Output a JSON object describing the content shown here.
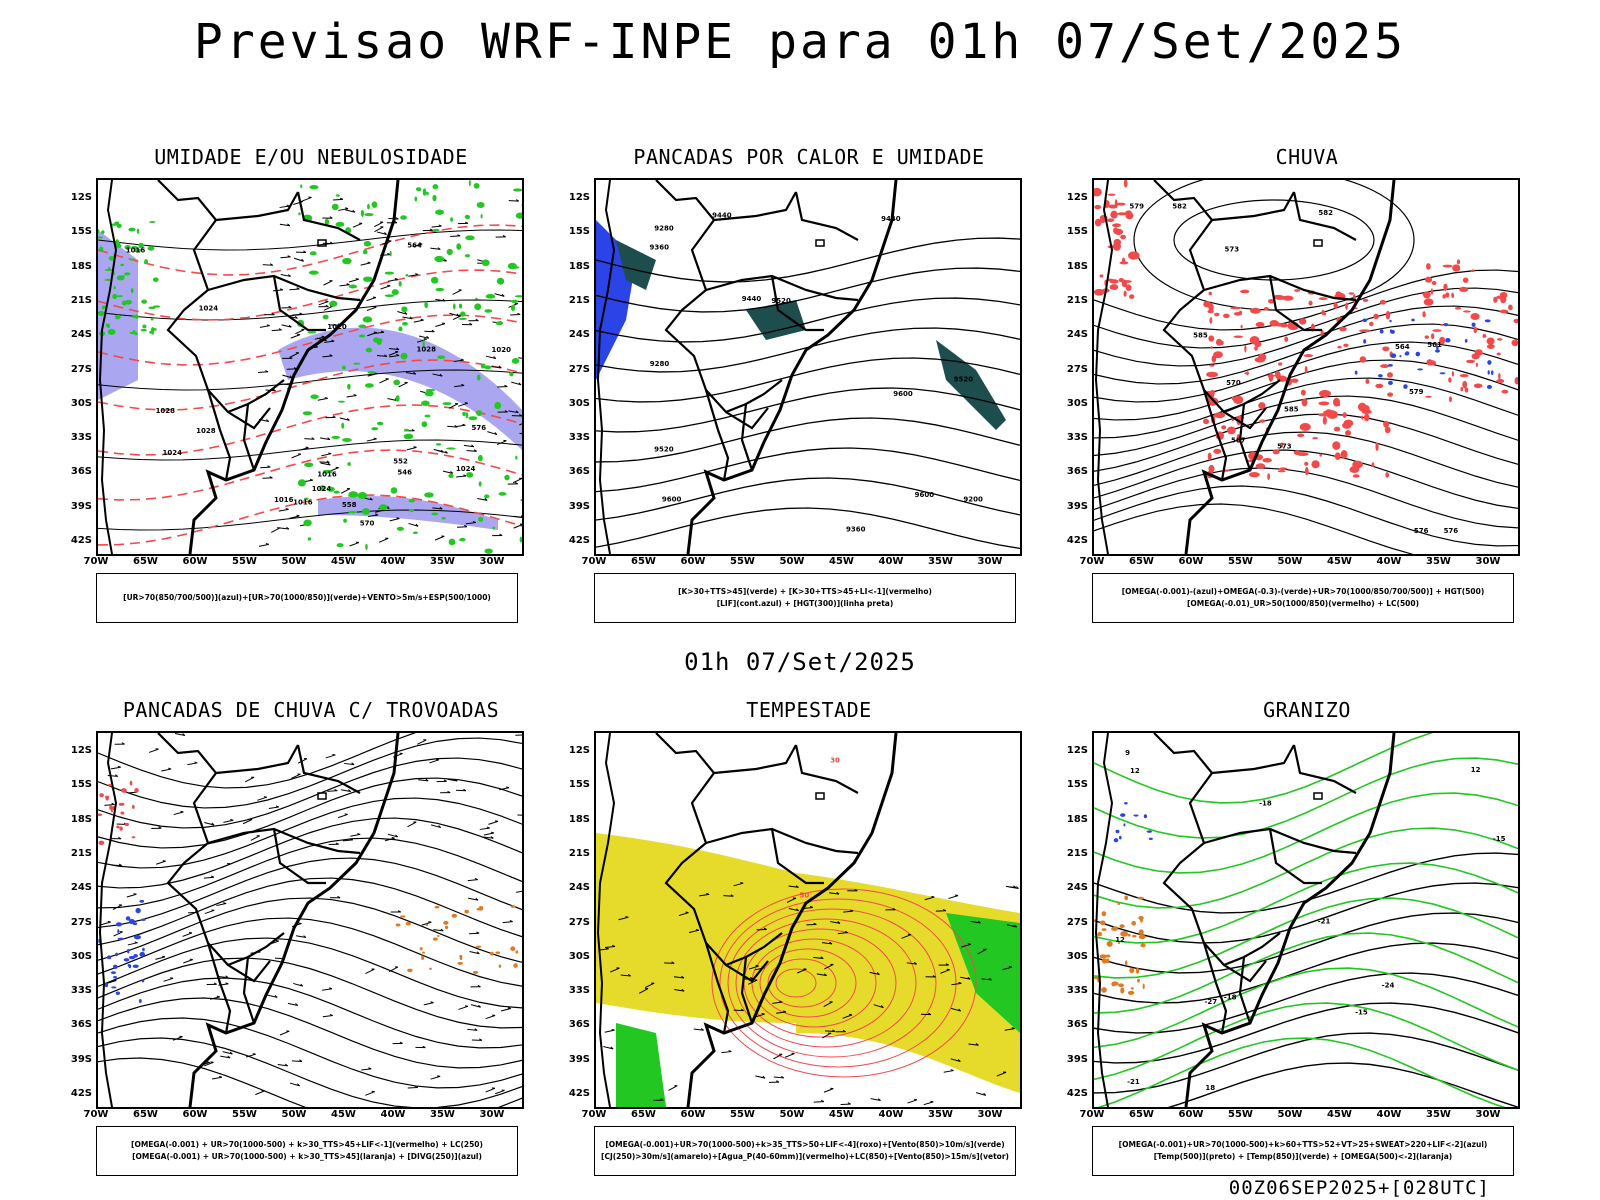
{
  "page": {
    "title": "Previsao WRF-INPE  para 01h 07/Set/2025",
    "subtitle": "01h 07/Set/2025",
    "footer": "00Z06SEP2025+[028UTC]"
  },
  "axes": {
    "lat_labels": [
      "12S",
      "15S",
      "18S",
      "21S",
      "24S",
      "27S",
      "30S",
      "33S",
      "36S",
      "39S",
      "42S"
    ],
    "lon_labels": [
      "70W",
      "65W",
      "60W",
      "55W",
      "50W",
      "45W",
      "40W",
      "35W",
      "30W"
    ]
  },
  "panels": [
    {
      "title": "UMIDADE E/OU NEBULOSIDADE",
      "legend": [
        "[UR>70(850/700/500)](azul)+[UR>70(1000/850)](verde)+VENTO>5m/s+ESP(500/1000)"
      ],
      "contour_labels": [
        "1016",
        "1016",
        "1020",
        "1016",
        "1020",
        "1024",
        "1024",
        "1028",
        "1028",
        "1024",
        "1028",
        "1024",
        "1016",
        "570",
        "564",
        "558",
        "552",
        "546",
        "576"
      ]
    },
    {
      "title": "PANCADAS POR CALOR E UMIDADE",
      "legend": [
        "[K>30+TTS>45](verde) + [K>30+TTS>45+LI<-1](vermelho)",
        "[LIF](cont.azul) + [HGT(300)](linha preta)"
      ],
      "contour_labels": [
        "9600",
        "9520",
        "9600",
        "9440",
        "9520",
        "9600",
        "9520",
        "9440",
        "9440",
        "9360",
        "9360",
        "9280",
        "9280",
        "9200"
      ]
    },
    {
      "title": "CHUVA",
      "legend": [
        "[OMEGA(-0.001)-(azul)+OMEGA(-0.3)-(verde)+UR>70(1000/850/700/500)] + HGT(500)",
        "[OMEGA(-0.01)_UR>50(1000/850)(vermelho) + LC(500)"
      ],
      "contour_labels": [
        "585",
        "585",
        "582",
        "579",
        "576",
        "573",
        "573",
        "570",
        "567",
        "564",
        "561",
        "582",
        "579",
        "576"
      ]
    },
    {
      "title": "PANCADAS DE CHUVA C/ TROVOADAS",
      "legend": [
        "[OMEGA(-0.001) + UR>70(1000-500) + k>30_TTS>45+LIF<-1](vermelho) + LC(250)",
        "[OMEGA(-0.001) + UR>70(1000-500) + k>30_TTS>45](laranja) + [DIVG(250)](azul)"
      ],
      "contour_labels": []
    },
    {
      "title": "TEMPESTADE",
      "legend": [
        "[OMEGA(-0.001)+UR>70(1000-500)+k>35_TTS>50+LIF<-4](roxo)+[Vento(850)>10m/s](verde)",
        "[CJ(250)>30m/s](amarelo)+[Agua_P(40-60mm)](vermelho)+LC(850)+[Vento(850)>15m/s](vetor)"
      ],
      "contour_labels": [
        "30",
        "50"
      ]
    },
    {
      "title": "GRANIZO",
      "legend": [
        "[OMEGA(-0.001)+UR>70(1000-500)+k>60+TTS>52+VT>25+SWEAT>220+LIF<-2](azul)",
        "[Temp(500)](preto) + [Temp(850)](verde) + [OMEGA(500)<-2](laranja)"
      ],
      "contour_labels": [
        "12",
        "9",
        "12",
        "12",
        "-15",
        "-15",
        "-18",
        "-18",
        "-21",
        "-24",
        "-27",
        "-21",
        "18"
      ]
    }
  ],
  "colors": {
    "blue_fill": "#aaa6f0",
    "green": "#22c722",
    "red": "#f24a4a",
    "yellow": "#e6db2a",
    "teal": "#1e4d4d",
    "blue": "#2a44e8",
    "orange": "#e07a20"
  }
}
